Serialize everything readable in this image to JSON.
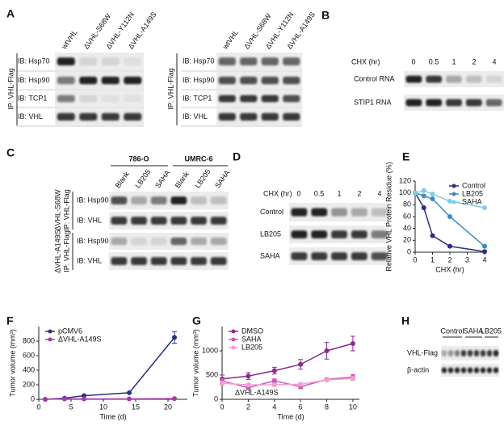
{
  "panels": {
    "A": {
      "label": "A",
      "left": {
        "ip": "IP: VHL-Flag",
        "columns": [
          "wtVHL",
          "ΔVHL-S68W",
          "ΔVHL-Y112N",
          "ΔVHL-A149S"
        ],
        "rows": [
          "IB: Hsp70",
          "IB: Hsp90",
          "IB: TCP1",
          "IB: VHL"
        ]
      },
      "right": {
        "ip": "IP: VHL-Flag",
        "columns": [
          "wtVHL",
          "ΔVHL-S68W",
          "ΔVHL-Y112N",
          "ΔVHL-A149S"
        ],
        "rows": [
          "IB: Hsp70",
          "IB: Hsp90",
          "IB: TCP1",
          "IB: VHL"
        ]
      }
    },
    "B": {
      "label": "B",
      "chx": "CHX (hr)",
      "times": [
        0,
        0.5,
        1,
        2,
        4
      ],
      "rows": [
        "Control RNA",
        "STIP1 RNA"
      ]
    },
    "C": {
      "label": "C",
      "groups": [
        "786-O",
        "UMRC-6"
      ],
      "columns": [
        "Blank",
        "LB205",
        "SAHA",
        "Blank",
        "LB205",
        "SAHA"
      ],
      "rows": [
        "IB: Hsp90",
        "IB: VHL",
        "IB: Hsp90",
        "IB: VHL"
      ],
      "sets": [
        {
          "mutant": "ΔVHL-S68W",
          "ip": "IP: VHL-Flag"
        },
        {
          "mutant": "ΔVHL-A149S",
          "ip": "IP: VHL-Flag"
        }
      ]
    },
    "D": {
      "label": "D",
      "chx": "CHX (hr)",
      "times": [
        0,
        0.5,
        1,
        2,
        4
      ],
      "rows": [
        "Control",
        "LB205",
        "SAHA"
      ]
    },
    "H": {
      "label": "H",
      "groups": [
        "Control",
        "SAHA",
        "LB205"
      ],
      "rows": [
        "VHL-Flag",
        "β-actin"
      ]
    }
  },
  "chart_data": [
    {
      "type": "line",
      "panel": "E",
      "xlabel": "CHX (hr)",
      "ylabel": "Relative VHL Protein Residue (%)",
      "x": [
        0,
        0.5,
        1,
        2,
        4
      ],
      "xlim": [
        0,
        4
      ],
      "ylim": [
        0,
        120
      ],
      "xticks": [
        0,
        1,
        2,
        3,
        4
      ],
      "yticks": [
        0,
        20,
        40,
        60,
        80,
        100,
        120
      ],
      "series": [
        {
          "name": "Control",
          "color": "#2b2f7e",
          "values": [
            100,
            75,
            28,
            10,
            1
          ]
        },
        {
          "name": "LB205",
          "color": "#3a8ac4",
          "values": [
            100,
            95,
            90,
            60,
            10
          ]
        },
        {
          "name": "SAHA",
          "color": "#7fcde8",
          "values": [
            100,
            104,
            98,
            86,
            75
          ]
        }
      ]
    },
    {
      "type": "line",
      "panel": "F",
      "xlabel": "Time (d)",
      "ylabel": "Tumor volume (mm³)",
      "x": [
        1,
        4,
        7,
        14,
        21
      ],
      "xlim": [
        0,
        23
      ],
      "ylim": [
        0,
        1000
      ],
      "xticks": [
        0,
        5,
        10,
        15,
        20
      ],
      "yticks": [
        0,
        200,
        400,
        600,
        800
      ],
      "series": [
        {
          "name": "pCMV6",
          "color": "#2b2f7e",
          "values": [
            0,
            15,
            50,
            90,
            850
          ],
          "errors": [
            0,
            0,
            0,
            0,
            80
          ]
        },
        {
          "name": "ΔVHL-A149S",
          "color": "#a43ca7",
          "values": [
            0,
            5,
            5,
            5,
            10
          ]
        }
      ]
    },
    {
      "type": "line",
      "panel": "G",
      "xlabel": "Time (d)",
      "ylabel": "Tumor volume (mm³)",
      "annotation": "ΔVHL-A149S",
      "x": [
        0,
        2,
        4,
        6,
        8,
        10
      ],
      "xlim": [
        0,
        10.5
      ],
      "ylim": [
        0,
        1500
      ],
      "xticks": [
        0,
        2,
        4,
        6,
        8,
        10
      ],
      "yticks": [
        0,
        500,
        1000
      ],
      "series": [
        {
          "name": "DMSO",
          "color": "#8b2a8f",
          "values": [
            420,
            480,
            590,
            720,
            1000,
            1150
          ],
          "errors": [
            80,
            70,
            70,
            100,
            170,
            150
          ]
        },
        {
          "name": "SAHA",
          "color": "#c65bb8",
          "values": [
            380,
            240,
            380,
            260,
            410,
            460
          ],
          "errors": [
            50,
            40,
            40,
            40,
            30,
            50
          ]
        },
        {
          "name": "LB205",
          "color": "#f0a0cf",
          "values": [
            330,
            300,
            300,
            310,
            400,
            430
          ],
          "errors": [
            40,
            30,
            30,
            30,
            30,
            40
          ]
        }
      ]
    }
  ]
}
